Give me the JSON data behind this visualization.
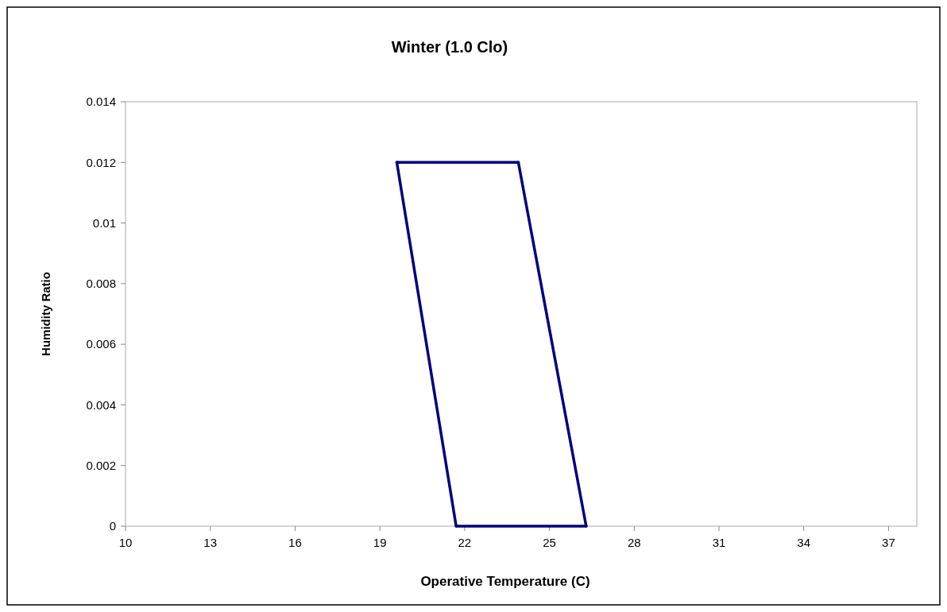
{
  "chart_data": {
    "type": "line",
    "title": "Winter (1.0 Clo)",
    "xlabel": "Operative Temperature (C)",
    "ylabel": "Humidity Ratio",
    "series": [
      {
        "color": "#000080",
        "x": [
          19.6,
          21.7
        ],
        "values": [
          0.012,
          0
        ]
      },
      {
        "color": "#000080",
        "x": [
          19.6,
          23.9
        ],
        "values": [
          0.012,
          0.012
        ]
      },
      {
        "color": "#000080",
        "x": [
          23.9,
          26.3
        ],
        "values": [
          0.012,
          0
        ]
      },
      {
        "color": "#000080",
        "x": [
          21.7,
          26.3
        ],
        "values": [
          0,
          0
        ]
      }
    ],
    "xlim": [
      10,
      38
    ],
    "xticks": [
      10,
      13,
      16,
      19,
      22,
      25,
      28,
      31,
      34,
      37
    ],
    "ylim": [
      0,
      0.014
    ],
    "yticks": [
      0,
      0.002,
      0.004,
      0.006,
      0.008,
      0.01,
      0.012,
      0.014
    ],
    "grid": false,
    "marker": "none",
    "line_style": "solid"
  }
}
